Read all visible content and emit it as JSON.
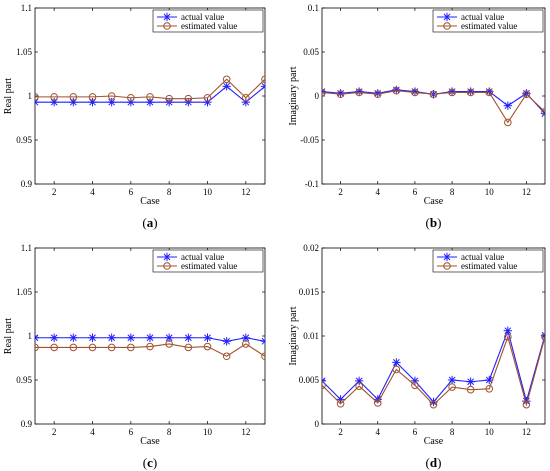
{
  "chart_data": [
    {
      "type": "line",
      "panel_label": "(a)",
      "xlabel": "Case",
      "ylabel": "Real part",
      "xlim": [
        1,
        13
      ],
      "ylim": [
        0.9,
        1.1
      ],
      "xticks": [
        2,
        4,
        6,
        8,
        10,
        12
      ],
      "yticks": [
        0.9,
        0.95,
        1,
        1.05,
        1.1
      ],
      "ytick_labels": [
        "0.9",
        "0.95",
        "1",
        "1.05",
        "1.1"
      ],
      "x": [
        1,
        2,
        3,
        4,
        5,
        6,
        7,
        8,
        9,
        10,
        11,
        12,
        13
      ],
      "legend_position": "top-right",
      "series": [
        {
          "name": "actual value",
          "color": "#1f1fff",
          "marker": "star",
          "values": [
            0.993,
            0.993,
            0.993,
            0.993,
            0.993,
            0.993,
            0.993,
            0.993,
            0.993,
            0.993,
            1.011,
            0.993,
            1.011
          ]
        },
        {
          "name": "estimated value",
          "color": "#a0522d",
          "marker": "circle",
          "values": [
            0.999,
            0.999,
            0.999,
            0.999,
            1.0,
            0.998,
            0.999,
            0.997,
            0.997,
            0.998,
            1.019,
            0.998,
            1.019
          ]
        }
      ]
    },
    {
      "type": "line",
      "panel_label": "(b)",
      "xlabel": "Case",
      "ylabel": "Imaginary part",
      "xlim": [
        1,
        13
      ],
      "ylim": [
        -0.1,
        0.1
      ],
      "xticks": [
        2,
        4,
        6,
        8,
        10,
        12
      ],
      "yticks": [
        -0.1,
        -0.05,
        0,
        0.05,
        0.1
      ],
      "ytick_labels": [
        "-0.1",
        "-0.05",
        "0",
        "0.05",
        "0.1"
      ],
      "x": [
        1,
        2,
        3,
        4,
        5,
        6,
        7,
        8,
        9,
        10,
        11,
        12,
        13
      ],
      "legend_position": "top-right",
      "series": [
        {
          "name": "actual value",
          "color": "#1f1fff",
          "marker": "star",
          "values": [
            0.005,
            0.003,
            0.005,
            0.003,
            0.007,
            0.005,
            0.002,
            0.005,
            0.005,
            0.005,
            -0.011,
            0.003,
            -0.02
          ]
        },
        {
          "name": "estimated value",
          "color": "#a0522d",
          "marker": "circle",
          "values": [
            0.004,
            0.002,
            0.004,
            0.002,
            0.006,
            0.004,
            0.002,
            0.004,
            0.004,
            0.004,
            -0.03,
            0.002,
            -0.018
          ]
        }
      ]
    },
    {
      "type": "line",
      "panel_label": "(c)",
      "xlabel": "Case",
      "ylabel": "Real part",
      "xlim": [
        1,
        13
      ],
      "ylim": [
        0.9,
        1.1
      ],
      "xticks": [
        2,
        4,
        6,
        8,
        10,
        12
      ],
      "yticks": [
        0.9,
        0.95,
        1,
        1.05,
        1.1
      ],
      "ytick_labels": [
        "0.9",
        "0.95",
        "1",
        "1.05",
        "1.1"
      ],
      "x": [
        1,
        2,
        3,
        4,
        5,
        6,
        7,
        8,
        9,
        10,
        11,
        12,
        13
      ],
      "legend_position": "top-right",
      "series": [
        {
          "name": "actual value",
          "color": "#1f1fff",
          "marker": "star",
          "values": [
            0.998,
            0.998,
            0.998,
            0.998,
            0.998,
            0.998,
            0.998,
            0.998,
            0.998,
            0.998,
            0.994,
            0.998,
            0.994
          ]
        },
        {
          "name": "estimated value",
          "color": "#a0522d",
          "marker": "circle",
          "values": [
            0.987,
            0.987,
            0.987,
            0.987,
            0.987,
            0.987,
            0.988,
            0.991,
            0.987,
            0.988,
            0.977,
            0.991,
            0.977
          ]
        }
      ]
    },
    {
      "type": "line",
      "panel_label": "(d)",
      "xlabel": "Case",
      "ylabel": "Imaginary part",
      "xlim": [
        1,
        13
      ],
      "ylim": [
        0,
        0.02
      ],
      "xticks": [
        2,
        4,
        6,
        8,
        10,
        12
      ],
      "yticks": [
        0,
        0.005,
        0.01,
        0.015,
        0.02
      ],
      "ytick_labels": [
        "0",
        "0.005",
        "0.01",
        "0.015",
        "0.02"
      ],
      "x": [
        1,
        2,
        3,
        4,
        5,
        6,
        7,
        8,
        9,
        10,
        11,
        12,
        13
      ],
      "legend_position": "top-right",
      "series": [
        {
          "name": "actual value",
          "color": "#1f1fff",
          "marker": "star",
          "values": [
            0.0049,
            0.0028,
            0.0049,
            0.0028,
            0.007,
            0.0049,
            0.0025,
            0.005,
            0.0048,
            0.005,
            0.0106,
            0.0026,
            0.0101
          ]
        },
        {
          "name": "estimated value",
          "color": "#a0522d",
          "marker": "circle",
          "values": [
            0.0044,
            0.0023,
            0.0043,
            0.0024,
            0.0062,
            0.0044,
            0.0022,
            0.0042,
            0.0039,
            0.004,
            0.0099,
            0.0022,
            0.0099
          ]
        }
      ]
    }
  ]
}
